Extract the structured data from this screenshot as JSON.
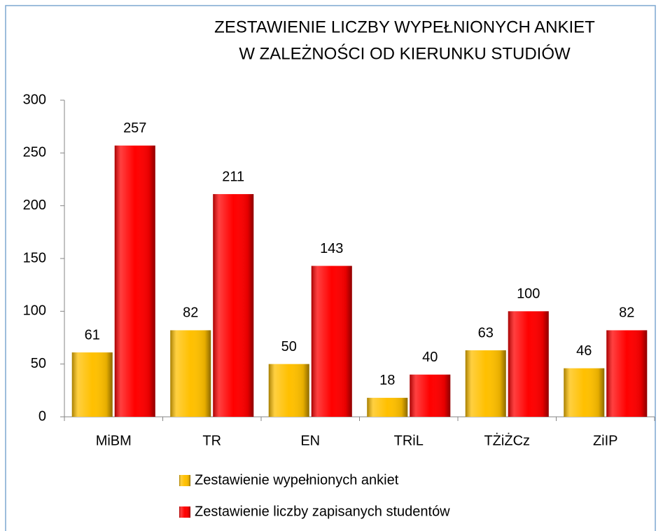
{
  "chart_data": {
    "type": "bar",
    "title": [
      "ZESTAWIENIE LICZBY WYPEŁNIONYCH ANKIET",
      "W ZALEŻNOŚCI OD KIERUNKU STUDIÓW"
    ],
    "categories": [
      "MiBM",
      "TR",
      "EN",
      "TRiL",
      "TŻiŻCz",
      "ZiIP"
    ],
    "series": [
      {
        "name": "Zestawienie wypełnionych ankiet",
        "color": "#ffc000",
        "values": [
          61,
          82,
          50,
          18,
          63,
          46
        ]
      },
      {
        "name": "Zestawienie liczby zapisanych studentów",
        "color": "#ff0000",
        "values": [
          257,
          211,
          143,
          40,
          100,
          82
        ]
      }
    ],
    "ylim": [
      0,
      300
    ],
    "yticks": [
      0,
      50,
      100,
      150,
      200,
      250,
      300
    ],
    "grid": false,
    "legend": "bottom"
  }
}
